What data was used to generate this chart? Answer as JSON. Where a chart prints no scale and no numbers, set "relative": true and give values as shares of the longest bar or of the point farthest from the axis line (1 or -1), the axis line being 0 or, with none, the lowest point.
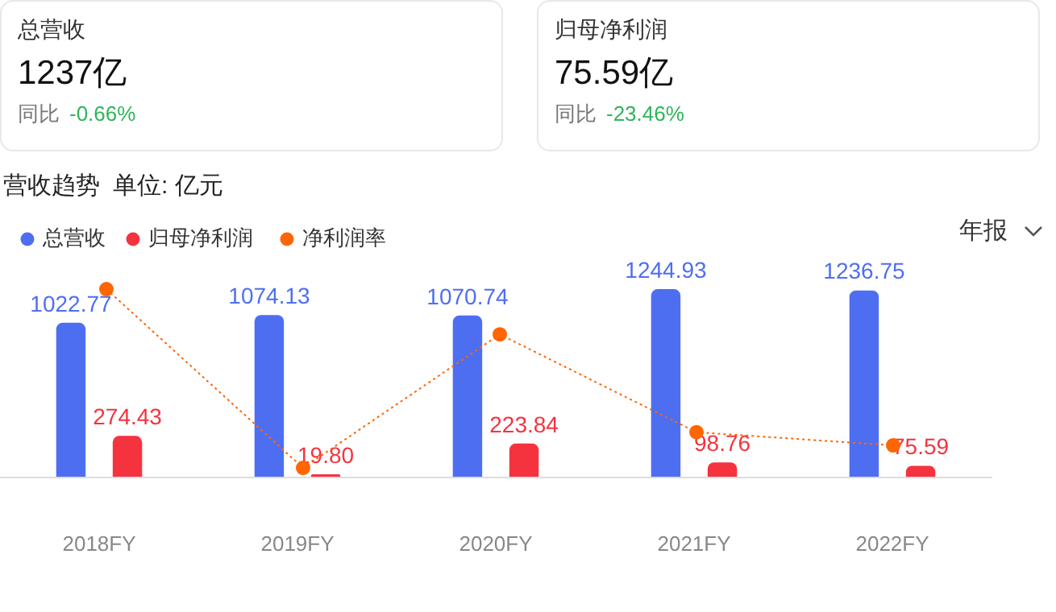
{
  "chart_data": [
    {
      "type": "other",
      "title": "总营收",
      "annotations": [
        "1237亿",
        "同比",
        "-0.66%"
      ]
    },
    {
      "type": "other",
      "title": "归母净利润",
      "annotations": [
        "75.59亿",
        "同比",
        "-23.46%"
      ]
    },
    {
      "type": "bar",
      "title": "营收趋势",
      "subtitle": "单位: 亿元",
      "annotations": [
        "年报"
      ],
      "categories": [
        "2018FY",
        "2019FY",
        "2020FY",
        "2021FY",
        "2022FY"
      ],
      "series": [
        {
          "name": "总营收",
          "type": "bar",
          "color": "#4e6ef2",
          "values": [
            1022.77,
            1074.13,
            1070.74,
            1244.93,
            1236.75
          ],
          "value_labels": [
            "1022.77",
            "1074.13",
            "1070.74",
            "1244.93",
            "1236.75"
          ]
        },
        {
          "name": "归母净利润",
          "type": "bar",
          "color": "#f5333f",
          "values": [
            274.43,
            19.8,
            223.84,
            98.76,
            75.59
          ],
          "value_labels": [
            "274.43",
            "19.80",
            "223.84",
            "98.76",
            "75.59"
          ]
        }
      ],
      "legend": "top left",
      "grid": false
    },
    {
      "type": "line",
      "relative": true,
      "legend": "top left",
      "categories": [
        null,
        null,
        null,
        null,
        null
      ],
      "series": [
        {
          "name": "净利润率",
          "color": "#ff6600",
          "line_style": "dotted",
          "marker": "circle",
          "values": [
            1,
            0.05,
            0.76,
            0.24,
            0.17
          ]
        }
      ]
    }
  ]
}
